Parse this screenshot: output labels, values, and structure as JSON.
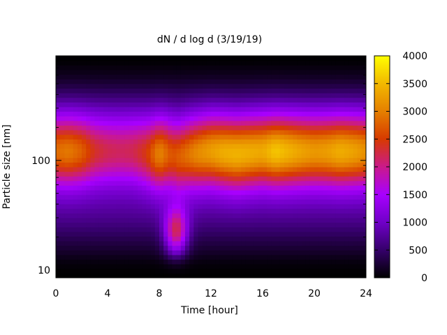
{
  "chart_data": {
    "type": "heatmap",
    "title": "dN / d log d (3/19/19)",
    "xlabel": "Time [hour]",
    "ylabel": "Particle size [nm]",
    "xlim": [
      0,
      24
    ],
    "ylim": [
      8.5,
      900
    ],
    "y_scale": "log",
    "x_ticks": [
      0,
      4,
      8,
      12,
      16,
      20,
      24
    ],
    "y_ticks": [
      10,
      100
    ],
    "colorbar": {
      "min": 0,
      "max": 4000,
      "ticks": [
        0,
        500,
        1000,
        1500,
        2000,
        2500,
        3000,
        3500,
        4000
      ],
      "palette": "gnuplot default (black-purple-red-orange-yellow)"
    },
    "grid": false,
    "mode_diameter_nm": {
      "hours": [
        0,
        2,
        4,
        6,
        7.5,
        8.5,
        9.5,
        10.5,
        12,
        14,
        16,
        17.5,
        20,
        22,
        24
      ],
      "values": [
        120,
        120,
        120,
        120,
        115,
        115,
        110,
        115,
        120,
        115,
        120,
        120,
        120,
        120,
        120
      ]
    },
    "mode_peak_concentration": {
      "hours": [
        0,
        1,
        2,
        3,
        4,
        5,
        6,
        7,
        8,
        9,
        10,
        11,
        12,
        13,
        14,
        15,
        16,
        17,
        18,
        19,
        20,
        21,
        22,
        23,
        24
      ],
      "values": [
        2700,
        2800,
        2600,
        2200,
        2050,
        2000,
        2050,
        2300,
        2900,
        2500,
        2700,
        2950,
        3100,
        3250,
        3300,
        3250,
        3200,
        3450,
        3300,
        3150,
        3050,
        3100,
        3250,
        3150,
        3000
      ]
    }
  }
}
